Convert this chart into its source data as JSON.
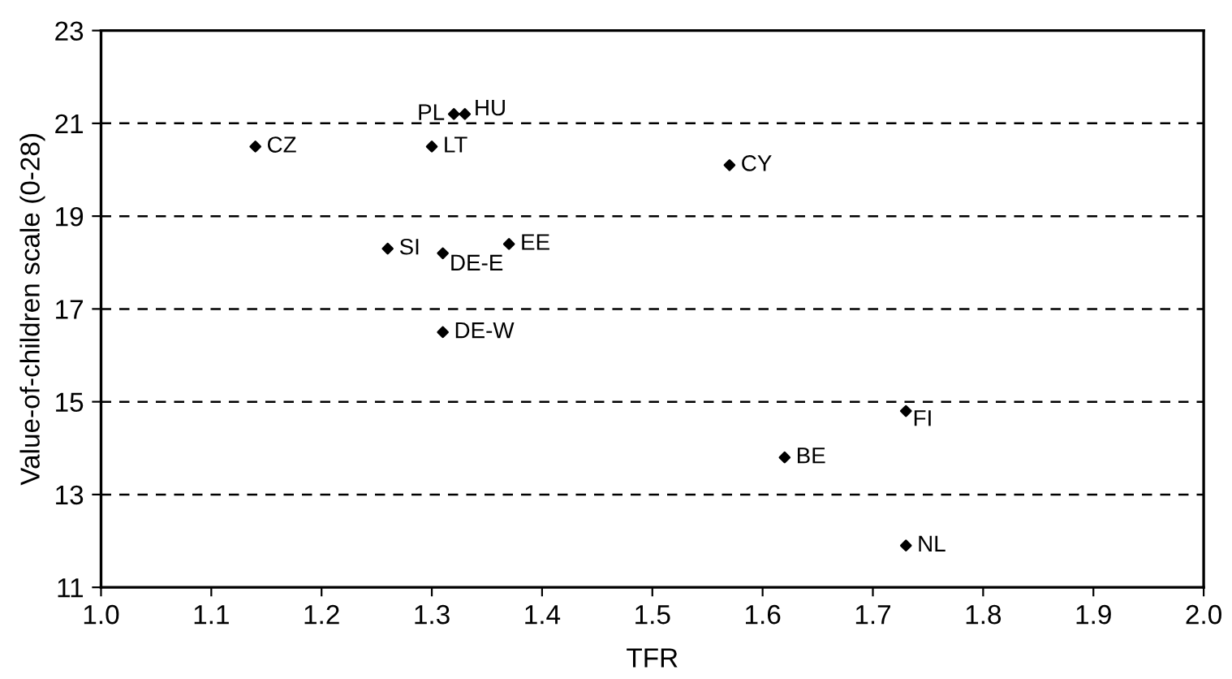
{
  "chart_data": {
    "type": "scatter",
    "xlabel": "TFR",
    "ylabel": "Value-of-children scale (0-28)",
    "x": [
      1.14,
      1.32,
      1.33,
      1.3,
      1.26,
      1.31,
      1.37,
      1.31,
      1.57,
      1.73,
      1.62,
      1.73
    ],
    "values": [
      20.5,
      21.2,
      21.2,
      20.5,
      18.3,
      18.2,
      18.4,
      16.5,
      20.1,
      14.8,
      13.8,
      11.9
    ],
    "color": "#000000",
    "marker": "diamond",
    "annotations": [
      {
        "text": "CZ",
        "x": 1.14,
        "y": 20.5
      },
      {
        "text": "PL",
        "x": 1.32,
        "y": 21.2
      },
      {
        "text": "HU",
        "x": 1.33,
        "y": 21.2
      },
      {
        "text": "LT",
        "x": 1.3,
        "y": 20.5
      },
      {
        "text": "SI",
        "x": 1.26,
        "y": 18.3
      },
      {
        "text": "DE-E",
        "x": 1.31,
        "y": 18.2
      },
      {
        "text": "EE",
        "x": 1.37,
        "y": 18.4
      },
      {
        "text": "DE-W",
        "x": 1.31,
        "y": 16.5
      },
      {
        "text": "CY",
        "x": 1.57,
        "y": 20.1
      },
      {
        "text": "FI",
        "x": 1.73,
        "y": 14.8
      },
      {
        "text": "BE",
        "x": 1.62,
        "y": 13.8
      },
      {
        "text": "NL",
        "x": 1.73,
        "y": 11.9
      }
    ],
    "xlim": [
      1.0,
      2.0
    ],
    "xticks": [
      {
        "value": 1.0,
        "label": "1.0"
      },
      1.1,
      1.2,
      1.3,
      1.4,
      1.5,
      1.6,
      1.7,
      1.8,
      1.9,
      {
        "value": 2.0,
        "label": "2.0"
      }
    ],
    "ylim": [
      11,
      23
    ],
    "yticks": [
      11,
      13,
      15,
      17,
      19,
      21,
      23
    ],
    "grid": "y",
    "line_style": "dashed"
  }
}
